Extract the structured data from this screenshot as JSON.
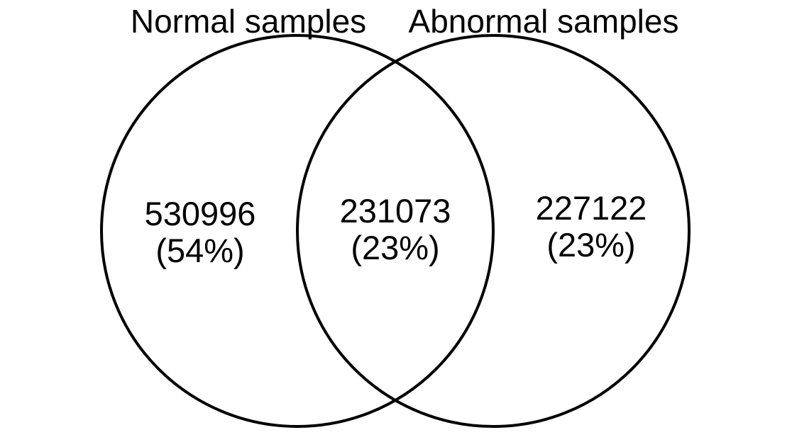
{
  "diagram": {
    "type": "venn",
    "sets": [
      {
        "label": "Normal samples"
      },
      {
        "label": "Abnormal samples"
      }
    ],
    "regions": {
      "normal_only": {
        "count": "530996",
        "percent": "(54%)"
      },
      "both": {
        "count": "231073",
        "percent": "(23%)"
      },
      "abnormal_only": {
        "count": "227122",
        "percent": "(23%)"
      }
    },
    "stroke_color": "#000000",
    "background_color": "#ffffff"
  }
}
